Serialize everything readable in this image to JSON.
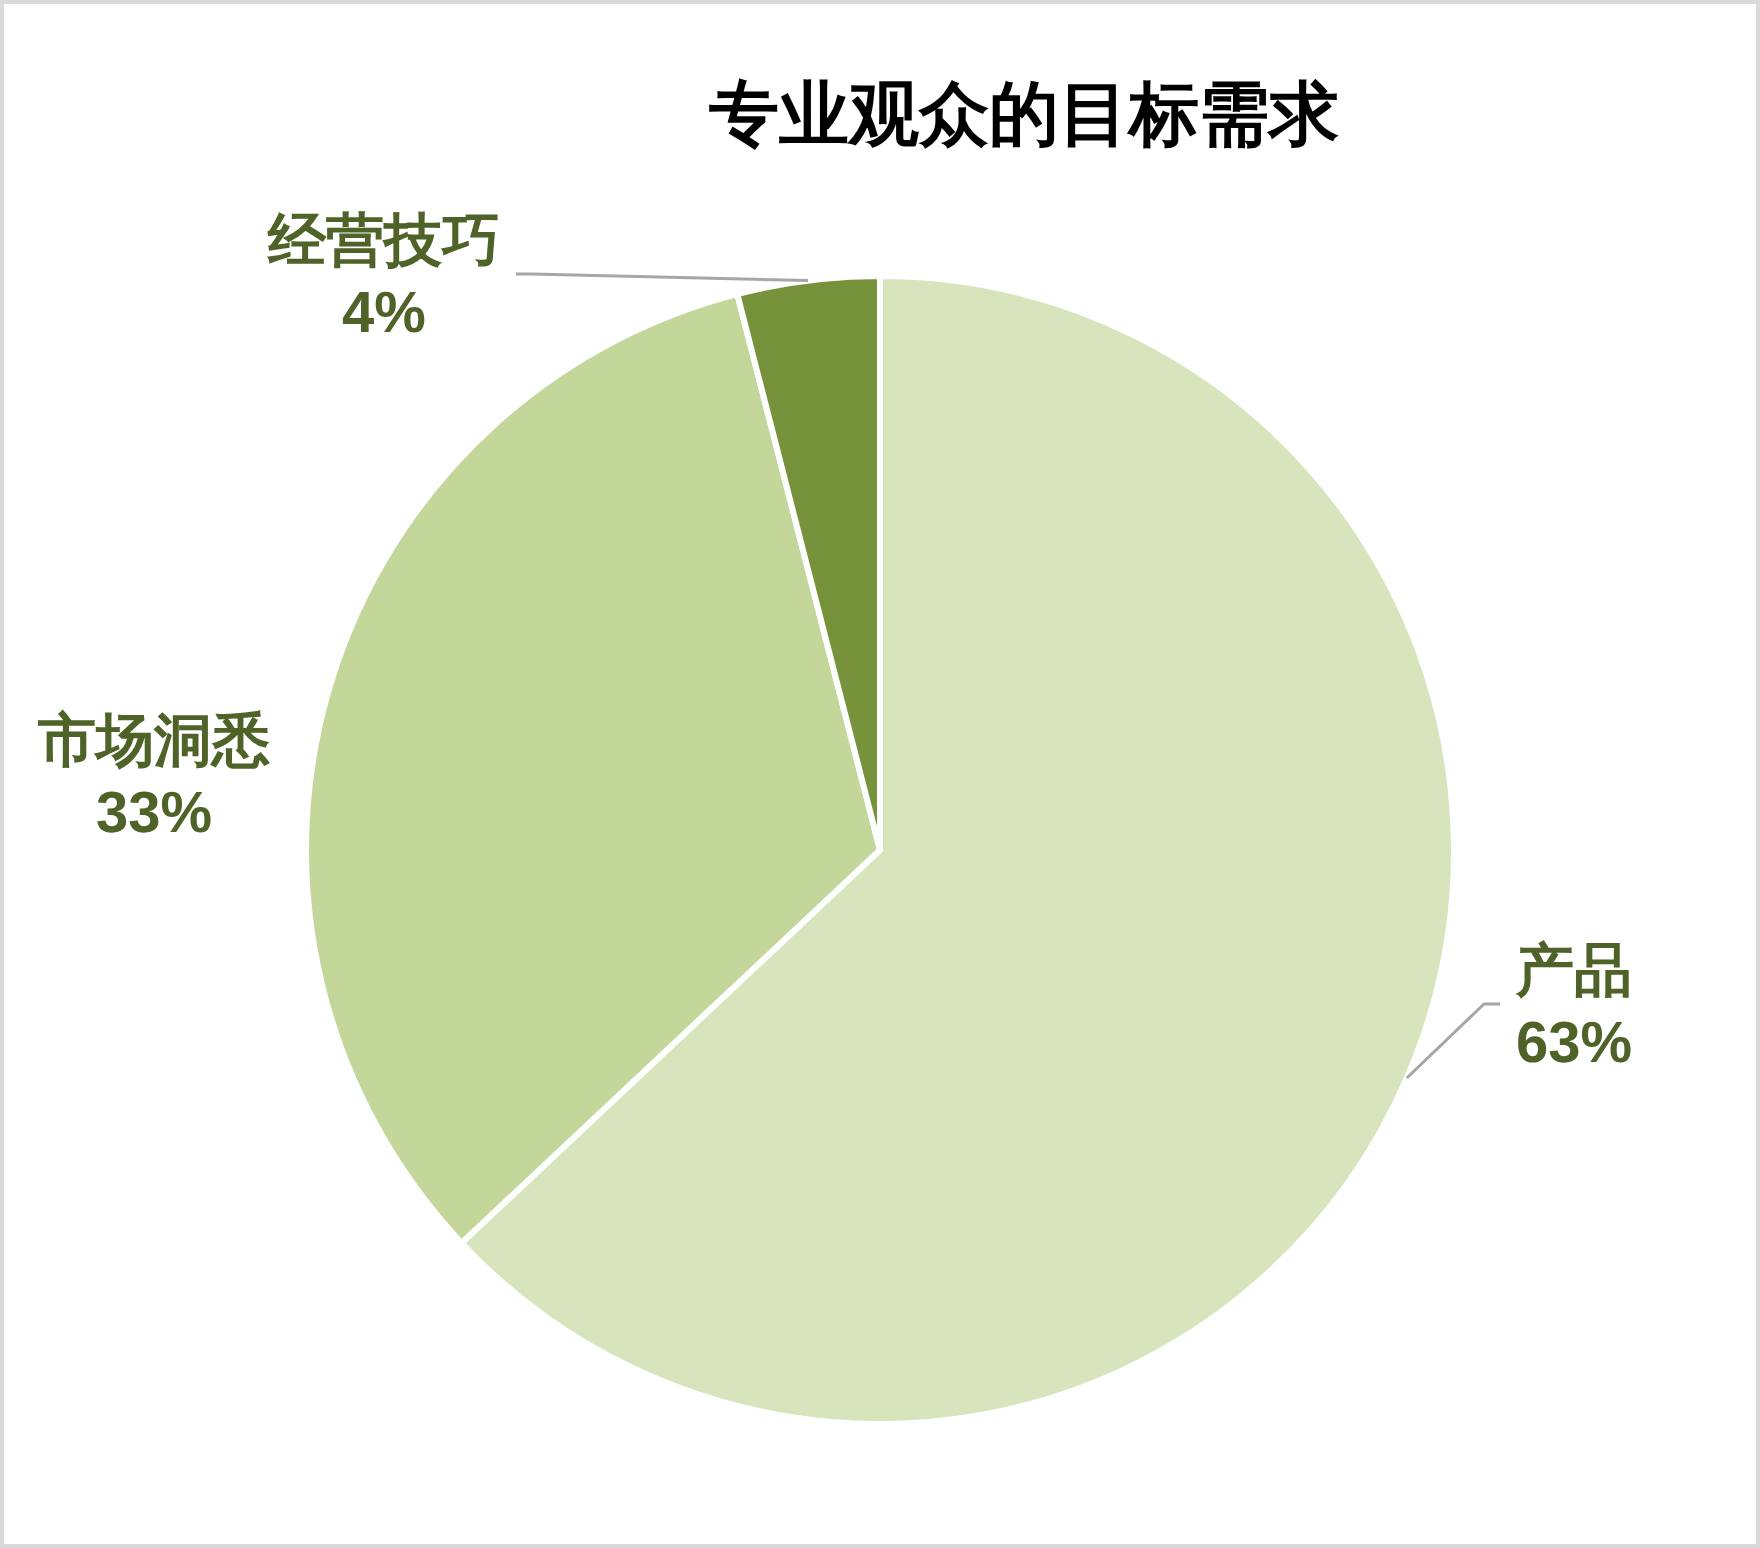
{
  "chart_data": {
    "type": "pie",
    "title": "专业观众的目标需求",
    "categories": [
      "产品",
      "市场洞悉",
      "经营技巧"
    ],
    "values": [
      63,
      33,
      4
    ],
    "colors": [
      "#d8e4bc",
      "#c4d79b",
      "#76933c"
    ],
    "value_labels": [
      "63%",
      "33%",
      "4%"
    ]
  }
}
